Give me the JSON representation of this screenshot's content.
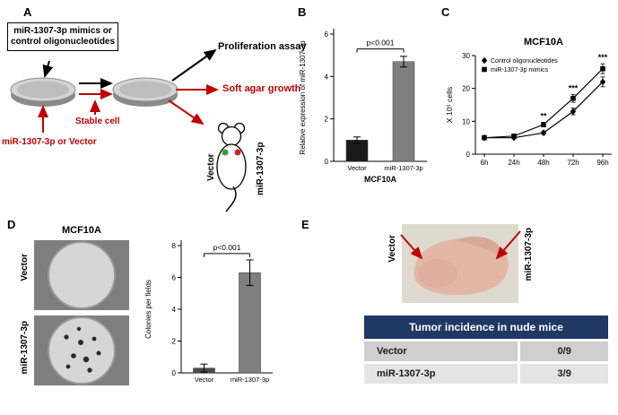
{
  "figure": {
    "panel_a": {
      "label": "A",
      "treatment_box": "miR-1307-3p mimics or control oligonucleotides",
      "stable_cell_label": "Stable cell",
      "transfection_label": "miR-1307-3p or Vector",
      "proliferation_label": "Proliferation assay",
      "soft_agar_label": "Soft agar growth",
      "mouse_left_label": "Vector",
      "mouse_right_label": "miR-1307-3p"
    },
    "panel_b": {
      "label": "B"
    },
    "panel_c": {
      "label": "C"
    },
    "panel_d": {
      "label": "D",
      "title": "MCF10A",
      "image_labels": [
        "Vector",
        "miR-1307-3p"
      ]
    },
    "panel_e": {
      "label": "E",
      "photo_labels": [
        "Vector",
        "miR-1307-3p"
      ],
      "table": {
        "header": "Tumor incidence in nude mice",
        "rows": [
          {
            "group": "Vector",
            "incidence": "0/9"
          },
          {
            "group": "miR-1307-3p",
            "incidence": "3/9"
          }
        ]
      }
    }
  },
  "chart_data": [
    {
      "id": "panel-b",
      "type": "bar",
      "title": "",
      "xlabel": "MCF10A",
      "ylabel": "Relative expression of miR-1307-3p",
      "categories": [
        "Vector",
        "miR-1307-3p"
      ],
      "values": [
        1.0,
        4.7
      ],
      "errors": [
        0.15,
        0.25
      ],
      "ylim": [
        0,
        6
      ],
      "yticks": [
        0,
        2,
        4,
        6
      ],
      "annotation": "p<0.001",
      "bracket_y": 5.3,
      "bar_colors": [
        "#1a1a1a",
        "#7f7f7f"
      ]
    },
    {
      "id": "panel-c",
      "type": "line",
      "title": "MCF10A",
      "xlabel": "",
      "ylabel": "X 10⁵ cells",
      "categories": [
        "6h",
        "24h",
        "48h",
        "72h",
        "96h"
      ],
      "series": [
        {
          "name": "Control oligonucleotides",
          "marker": "diamond",
          "values": [
            5,
            5,
            6.5,
            13,
            22
          ],
          "errors": [
            0.3,
            0.3,
            0.5,
            1.0,
            1.5
          ]
        },
        {
          "name": "miR-1307-3p mimics",
          "marker": "square",
          "values": [
            5,
            5.5,
            9,
            17,
            26
          ],
          "errors": [
            0.3,
            0.3,
            0.7,
            1.2,
            1.5
          ]
        }
      ],
      "ylim": [
        0,
        30
      ],
      "yticks": [
        0,
        10,
        20,
        30
      ],
      "legend_position": "top-left",
      "grid": false,
      "significance": [
        {
          "x": 2,
          "label": "**"
        },
        {
          "x": 3,
          "label": "***"
        },
        {
          "x": 4,
          "label": "***"
        }
      ]
    },
    {
      "id": "panel-d",
      "type": "bar",
      "title": "",
      "xlabel": "",
      "ylabel": "Colonies per fields",
      "categories": [
        "Vector",
        "miR-1307-3p"
      ],
      "values": [
        0.3,
        6.3
      ],
      "errors": [
        0.25,
        0.8
      ],
      "ylim": [
        0,
        8
      ],
      "yticks": [
        0,
        2,
        4,
        6,
        8
      ],
      "annotation": "p<0.001",
      "bracket_y": 7.5,
      "bar_colors": [
        "#4a4a4a",
        "#7f7f7f"
      ]
    }
  ]
}
